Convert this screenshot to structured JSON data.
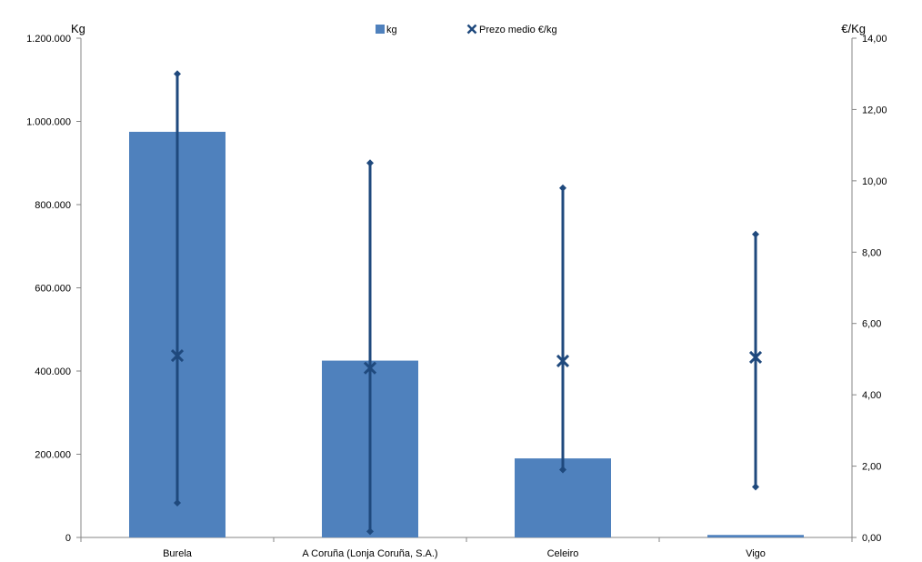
{
  "chart_data": {
    "type": "bar",
    "categories": [
      "Burela",
      "A Coruña (Lonja Coruña, S.A.)",
      "Celeiro",
      "Vigo"
    ],
    "series": [
      {
        "name": "kg",
        "axis": "left",
        "type": "bar",
        "values": [
          975000,
          425000,
          190000,
          6000
        ]
      },
      {
        "name": "Prezo medio €/kg",
        "axis": "right",
        "type": "scatter",
        "marker": "x",
        "values": [
          5.1,
          4.75,
          4.95,
          5.05
        ],
        "max": [
          13.0,
          10.5,
          9.8,
          8.5
        ],
        "min": [
          0.97,
          0.17,
          1.9,
          1.42
        ]
      }
    ],
    "y_left": {
      "unit": "Kg",
      "range": [
        0,
        1200000
      ],
      "ticks": [
        0,
        200000,
        400000,
        600000,
        800000,
        1000000,
        1200000
      ],
      "tick_labels": [
        "0",
        "200.000",
        "400.000",
        "600.000",
        "800.000",
        "1.000.000",
        "1.200.000"
      ]
    },
    "y_right": {
      "unit": "€/Kg",
      "range": [
        0,
        14
      ],
      "ticks": [
        0,
        2,
        4,
        6,
        8,
        10,
        12,
        14
      ],
      "tick_labels": [
        "0,00",
        "2,00",
        "4,00",
        "6,00",
        "8,00",
        "10,00",
        "12,00",
        "14,00"
      ]
    },
    "legend": {
      "position": "top",
      "entries": [
        "kg",
        "Prezo medio €/kg"
      ]
    },
    "grid": false,
    "colors": {
      "bar": "#4f81bd",
      "price": "#1f497d",
      "axis": "#868686"
    }
  }
}
